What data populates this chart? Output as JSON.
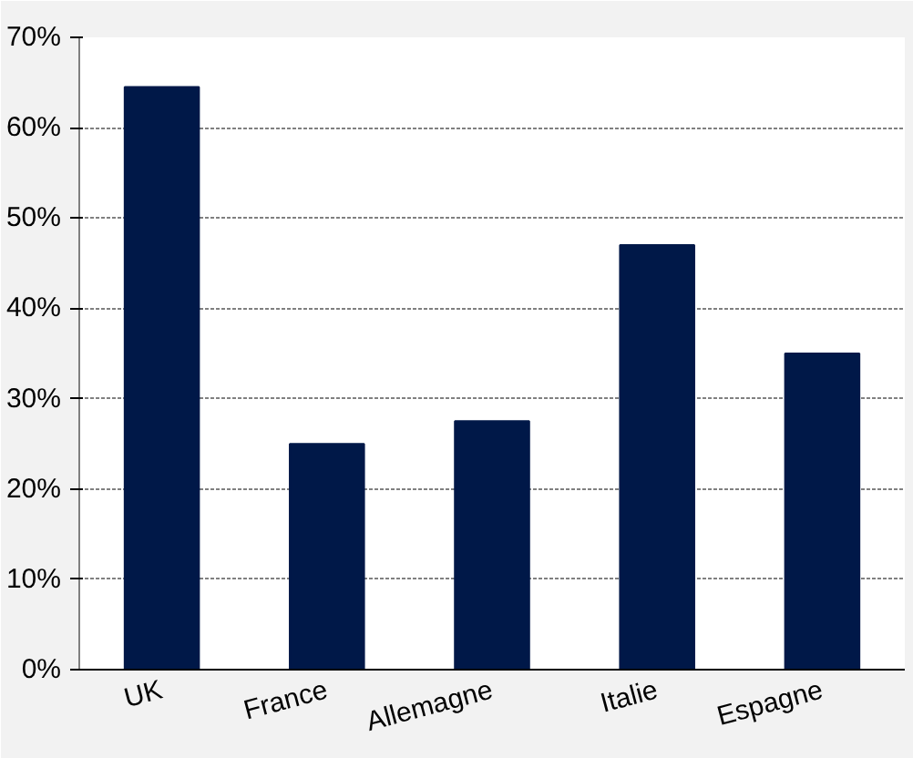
{
  "chart_data": {
    "type": "bar",
    "categories": [
      "UK",
      "France",
      "Allemagne",
      "Italie",
      "Espagne"
    ],
    "values": [
      64.5,
      25,
      27.5,
      47,
      35
    ],
    "color": "#001848",
    "ylim": [
      0,
      70
    ],
    "yticks": [
      {
        "value": 0,
        "label": "0%"
      },
      {
        "value": 10,
        "label": "10%"
      },
      {
        "value": 20,
        "label": "20%"
      },
      {
        "value": 30,
        "label": "30%"
      },
      {
        "value": 40,
        "label": "40%"
      },
      {
        "value": 50,
        "label": "50%"
      },
      {
        "value": 60,
        "label": "60%"
      },
      {
        "value": 70,
        "label": "70%"
      }
    ],
    "grid": "y"
  }
}
